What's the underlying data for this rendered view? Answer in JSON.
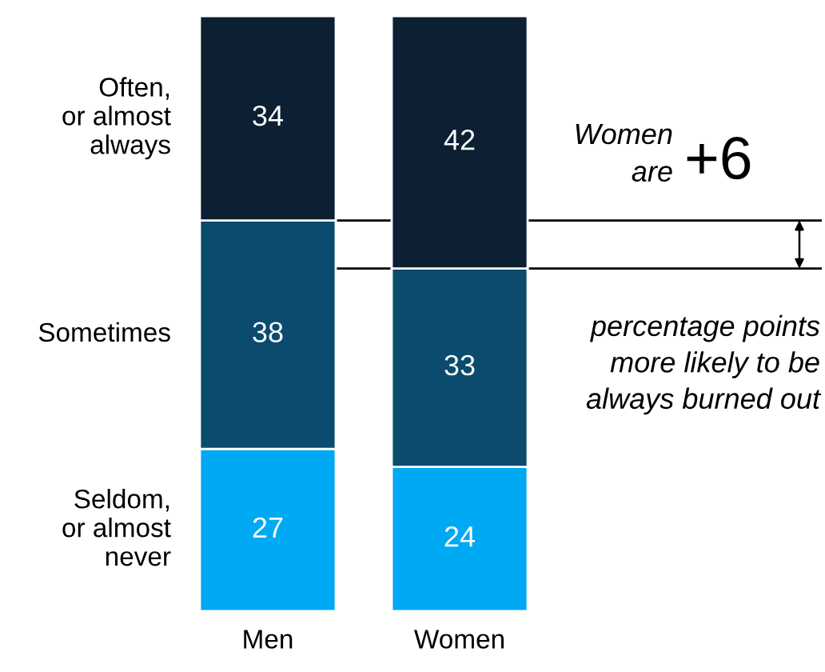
{
  "chart_data": {
    "type": "bar",
    "stacked": true,
    "ref_lines": [
      {
        "axis": "y",
        "value": 65,
        "color": "#000000"
      },
      {
        "axis": "y",
        "value": 57,
        "color": "#000000"
      }
    ],
    "data_labels": true,
    "legend": false,
    "grid": false,
    "categories": [
      "Men",
      "Women"
    ],
    "series": [
      {
        "name": "Seldom,\nor almost\nnever",
        "color": "#00a9f4",
        "values": [
          27,
          24
        ]
      },
      {
        "name": "Sometimes",
        "color": "#0b4b6e",
        "values": [
          38,
          33
        ]
      },
      {
        "name": "Often,\nor almost\nalways",
        "color": "#0c1f33",
        "values": [
          34,
          42
        ]
      }
    ],
    "annotations": [
      "Women\nare",
      "+6",
      "percentage points\nmore likely to be\nalways burned out"
    ]
  }
}
